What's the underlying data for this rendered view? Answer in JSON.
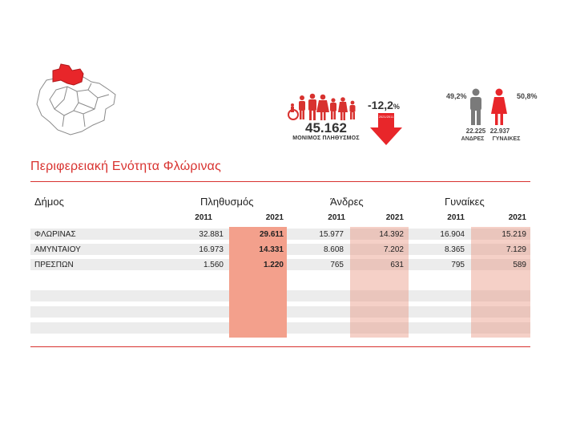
{
  "infographic": {
    "population_total": "45.162",
    "population_label": "ΜΟΝΙΜΟΣ ΠΛΗΘΥΣΜΟΣ",
    "change_pct": "-12,2",
    "change_unit": "%",
    "change_arrow_label": "2021/2011",
    "male_pct": "49,2%",
    "female_pct": "50,8%",
    "male_count": "22.225",
    "female_count": "22.937",
    "male_label": "ΑΝΔΡΕΣ",
    "female_label": "ΓΥΝΑΙΚΕΣ"
  },
  "region_title": "Περιφερειακή Ενότητα Φλώρινας",
  "table": {
    "headers": {
      "municipality": "Δήμος",
      "population": "Πληθυσμός",
      "men": "Άνδρες",
      "women": "Γυναίκες"
    },
    "years": [
      "2011",
      "2021"
    ],
    "rows": [
      {
        "name": "ΦΛΩΡΙΝΑΣ",
        "pop2011": "32.881",
        "pop2021": "29.611",
        "men2011": "15.977",
        "men2021": "14.392",
        "women2011": "16.904",
        "women2021": "15.219"
      },
      {
        "name": "ΑΜΥΝΤΑΙΟΥ",
        "pop2011": "16.973",
        "pop2021": "14.331",
        "men2011": "8.608",
        "men2021": "7.202",
        "women2011": "8.365",
        "women2021": "7.129"
      },
      {
        "name": "ΠΡΕΣΠΩΝ",
        "pop2011": "1.560",
        "pop2021": "1.220",
        "men2011": "765",
        "men2021": "631",
        "women2011": "795",
        "women2021": "589"
      }
    ]
  },
  "colors": {
    "accent": "#d8322f",
    "pop_band": "#f3a08c",
    "men_band": "#f2cfc6",
    "women_band": "#f2cfc6",
    "row_bg": "#ececec",
    "icon_gray": "#7a7a7a"
  }
}
